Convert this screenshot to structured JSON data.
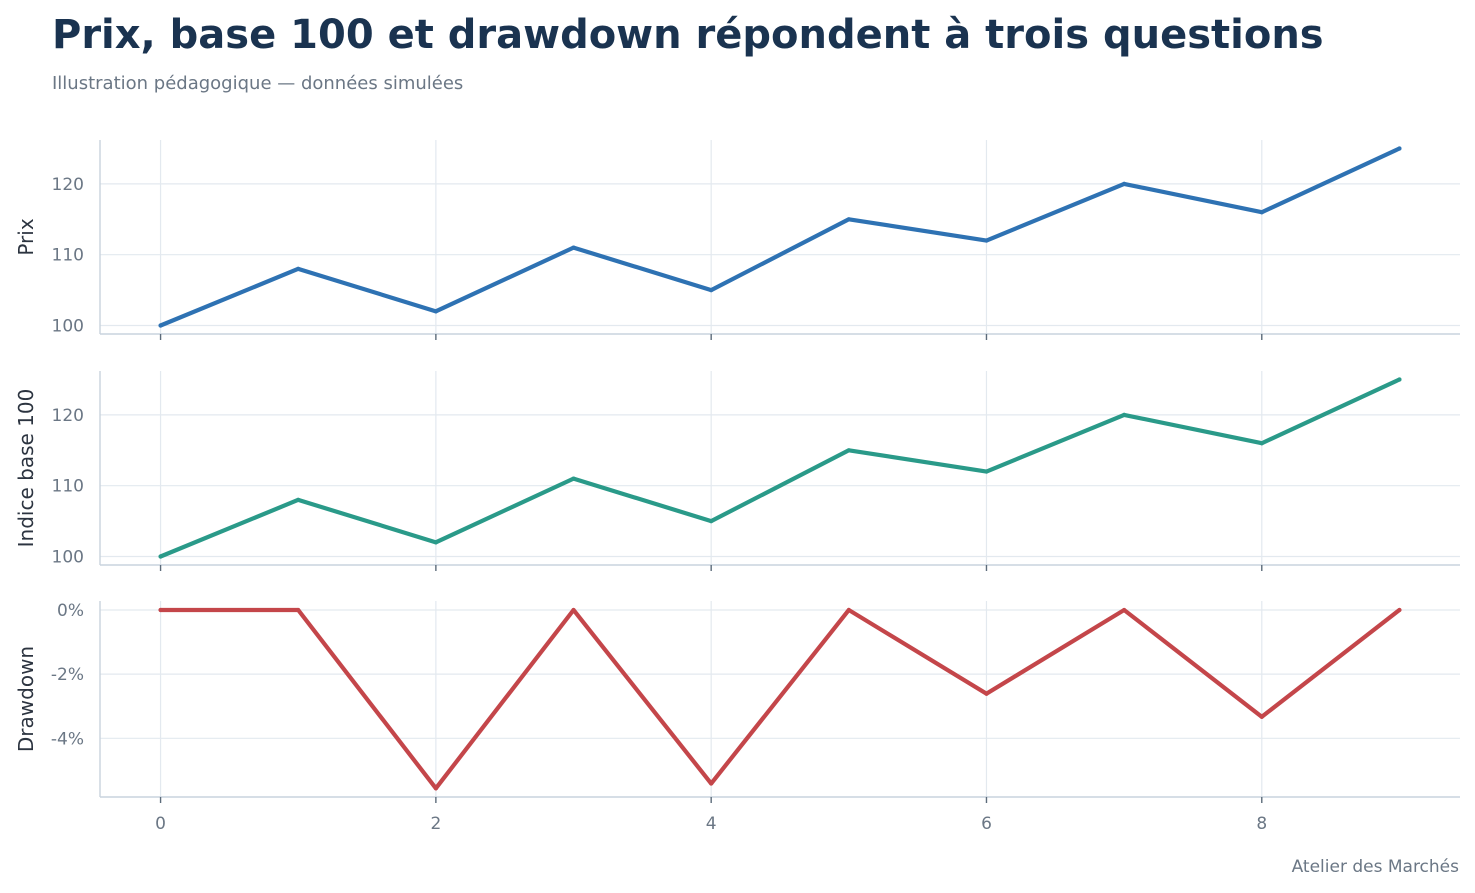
{
  "header": {
    "title": "Prix, base 100 et drawdown répondent à trois questions",
    "subtitle": "Illustration pédagogique — données simulées"
  },
  "footer": {
    "credit": "Atelier des Marchés"
  },
  "colors": {
    "prix": "#2e72b3",
    "base100": "#2a9a89",
    "drawdown": "#c4464a",
    "grid": "#e3e9ef",
    "axis": "#c9d3dd",
    "tick": "#6b7785"
  },
  "chart_data": [
    {
      "type": "line",
      "ylabel": "Prix",
      "x": [
        0,
        1,
        2,
        3,
        4,
        5,
        6,
        7,
        8,
        9
      ],
      "values": [
        100,
        108,
        102,
        111,
        105,
        115,
        112,
        120,
        116,
        125
      ],
      "yticks": [
        100,
        110,
        120
      ],
      "ytick_labels": [
        "100",
        "110",
        "120"
      ],
      "ylim": [
        98.8,
        126.2
      ],
      "xlim": [
        -0.44,
        9.44
      ],
      "grid": true
    },
    {
      "type": "line",
      "ylabel": "Indice base 100",
      "x": [
        0,
        1,
        2,
        3,
        4,
        5,
        6,
        7,
        8,
        9
      ],
      "values": [
        100,
        108,
        102,
        111,
        105,
        115,
        112,
        120,
        116,
        125
      ],
      "yticks": [
        100,
        110,
        120
      ],
      "ytick_labels": [
        "100",
        "110",
        "120"
      ],
      "ylim": [
        98.8,
        126.2
      ],
      "xlim": [
        -0.44,
        9.44
      ],
      "grid": true
    },
    {
      "type": "line",
      "ylabel": "Drawdown",
      "x": [
        0,
        1,
        2,
        3,
        4,
        5,
        6,
        7,
        8,
        9
      ],
      "values": [
        0,
        0,
        -5.56,
        0,
        -5.41,
        0,
        -2.61,
        0,
        -3.33,
        0
      ],
      "yticks": [
        0,
        -2,
        -4
      ],
      "ytick_labels": [
        "0%",
        "-2%",
        "-4%"
      ],
      "xticks": [
        0,
        2,
        4,
        6,
        8
      ],
      "xtick_labels": [
        "0",
        "2",
        "4",
        "6",
        "8"
      ],
      "ylim": [
        -5.83,
        0.28
      ],
      "xlim": [
        -0.44,
        9.44
      ],
      "grid": true
    }
  ]
}
